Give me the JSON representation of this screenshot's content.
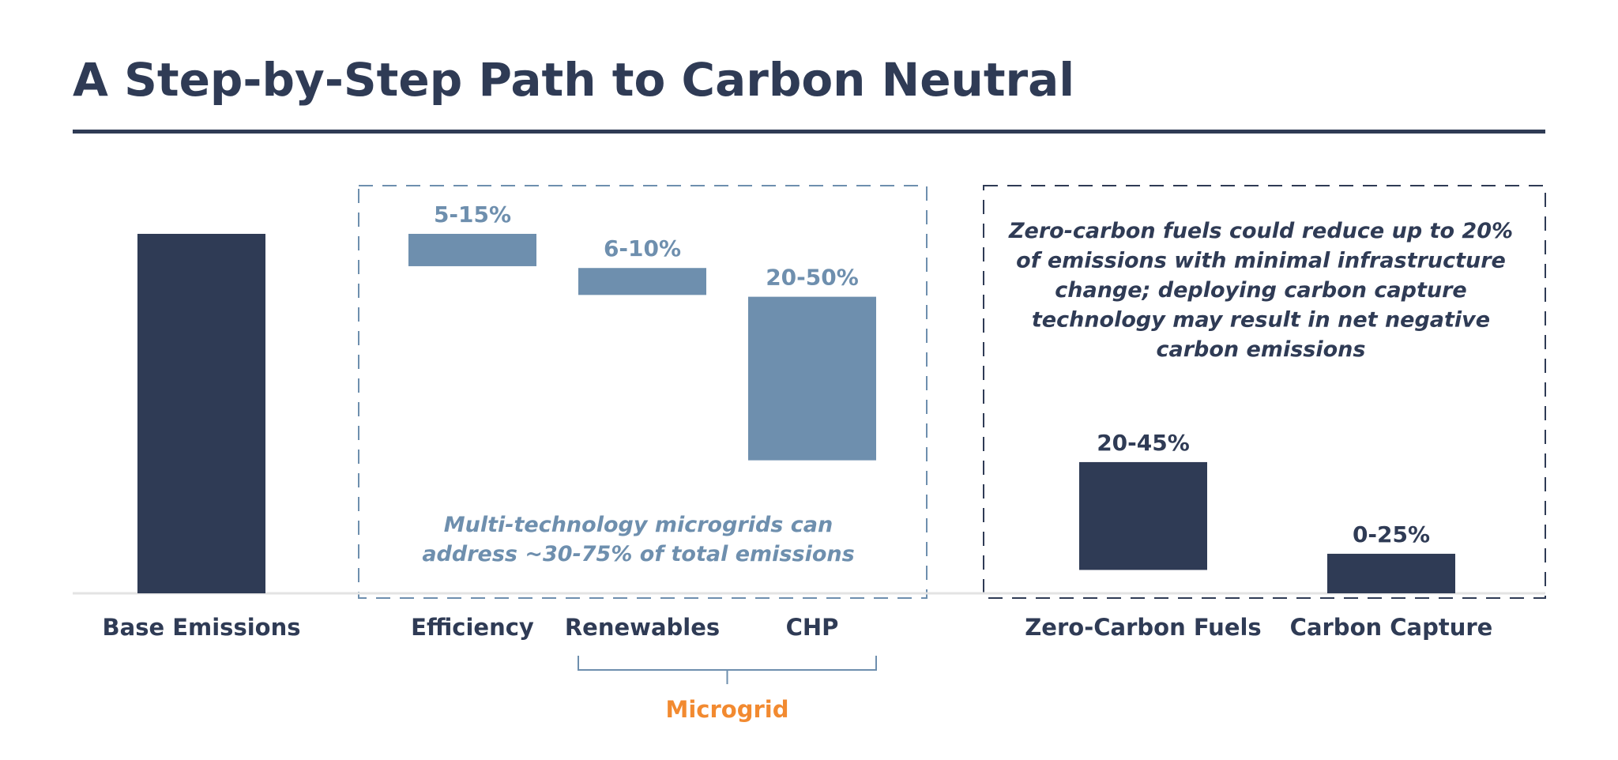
{
  "title": "A Step-by-Step Path to Carbon Neutral",
  "colors": {
    "dark_bar": "#2f3b55",
    "light_bar": "#6e8fae",
    "microgrid_label": "#f28a30",
    "baseline": "#e3e3e3"
  },
  "chart_data": {
    "type": "bar",
    "subtype": "waterfall",
    "title": "A Step-by-Step Path to Carbon Neutral",
    "categories": [
      "Base Emissions",
      "Efficiency",
      "Renewables",
      "CHP",
      "Zero-Carbon Fuels",
      "Carbon Capture"
    ],
    "bars": [
      {
        "category": "Base Emissions",
        "label": "",
        "start": 100,
        "end": 0,
        "color": "dark"
      },
      {
        "category": "Efficiency",
        "label": "5-15%",
        "start": 100,
        "end": 91,
        "color": "light"
      },
      {
        "category": "Renewables",
        "label": "6-10%",
        "start": 90.5,
        "end": 83,
        "color": "light"
      },
      {
        "category": "CHP",
        "label": "20-50%",
        "start": 82.5,
        "end": 37,
        "color": "light"
      },
      {
        "category": "Zero-Carbon Fuels",
        "label": "20-45%",
        "start": 36.5,
        "end": 6.5,
        "color": "dark"
      },
      {
        "category": "Carbon Capture",
        "label": "0-25%",
        "start": 11,
        "end": 0,
        "color": "dark"
      }
    ],
    "groups": [
      {
        "name": "microgrid",
        "members": [
          "Efficiency",
          "Renewables",
          "CHP"
        ],
        "note": [
          "Multi-technology microgrids can",
          "address ~30-75% of total emissions"
        ]
      },
      {
        "name": "zero-carbon",
        "members": [
          "Zero-Carbon Fuels",
          "Carbon Capture"
        ],
        "note": [
          "Zero-carbon fuels could reduce up to 20%",
          "of emissions with minimal infrastructure",
          "change; deploying carbon capture",
          "technology may result in net negative",
          "carbon emissions"
        ]
      }
    ],
    "bracket": {
      "label": "Microgrid",
      "spans": [
        "Renewables",
        "CHP"
      ]
    },
    "grid": false,
    "legend": "none"
  }
}
